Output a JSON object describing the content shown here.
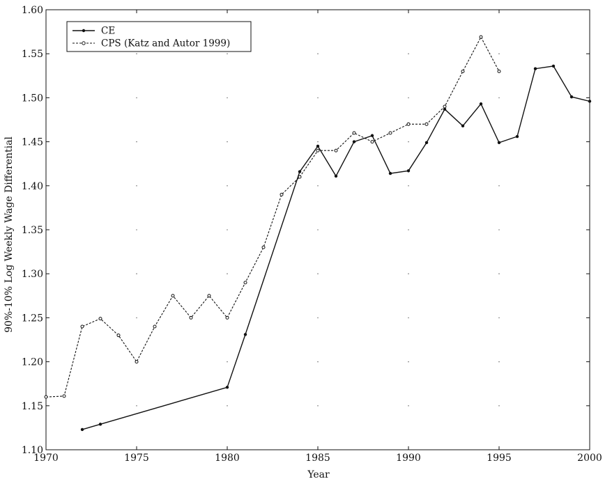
{
  "chart_data": {
    "type": "line",
    "title": "",
    "xlabel": "Year",
    "ylabel": "90%-10% Log Weekly Wage Differential",
    "xlim": [
      1970,
      2000
    ],
    "ylim": [
      1.1,
      1.6
    ],
    "xticks": [
      "1970",
      "1975",
      "1980",
      "1985",
      "1990",
      "1995",
      "2000"
    ],
    "yticks": [
      "1.10",
      "1.15",
      "1.20",
      "1.25",
      "1.30",
      "1.35",
      "1.40",
      "1.45",
      "1.50",
      "1.55",
      "1.60"
    ],
    "grid": "dotted",
    "legend_position": "top-left",
    "series": [
      {
        "name": "CE",
        "style": "solid",
        "x": [
          1972,
          1973,
          1980,
          1981,
          1984,
          1985,
          1986,
          1987,
          1988,
          1989,
          1990,
          1991,
          1992,
          1993,
          1994,
          1995,
          1996,
          1997,
          1998,
          1999,
          2000
        ],
        "y": [
          1.123,
          1.129,
          1.171,
          1.231,
          1.416,
          1.445,
          1.411,
          1.45,
          1.457,
          1.414,
          1.417,
          1.449,
          1.487,
          1.468,
          1.493,
          1.449,
          1.456,
          1.533,
          1.536,
          1.501,
          1.496
        ]
      },
      {
        "name": "CPS (Katz and Autor 1999)",
        "style": "dashed",
        "x": [
          1970,
          1971,
          1972,
          1973,
          1974,
          1975,
          1976,
          1977,
          1978,
          1979,
          1980,
          1981,
          1982,
          1983,
          1984,
          1985,
          1986,
          1987,
          1988,
          1989,
          1990,
          1991,
          1992,
          1993,
          1994,
          1995
        ],
        "y": [
          1.16,
          1.161,
          1.24,
          1.249,
          1.23,
          1.2,
          1.24,
          1.275,
          1.25,
          1.275,
          1.25,
          1.29,
          1.33,
          1.39,
          1.41,
          1.44,
          1.44,
          1.46,
          1.45,
          1.46,
          1.47,
          1.47,
          1.49,
          1.53,
          1.569,
          1.53
        ]
      }
    ]
  }
}
